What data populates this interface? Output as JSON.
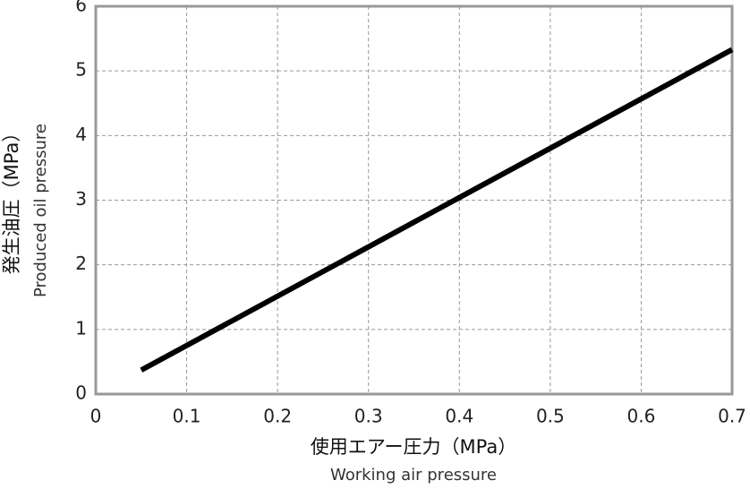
{
  "chart_data": {
    "type": "line",
    "ylabel": "発生油圧（MPa）",
    "ylabel_sub": "Produced oil pressure",
    "xlabel": "使用エアー圧力（MPa）",
    "xlabel_sub": "Working air pressure",
    "x": [
      0.05,
      0.7
    ],
    "values": [
      0.37,
      5.33
    ],
    "color": "#000000",
    "xlim": [
      0,
      0.7
    ],
    "xticks": [
      0,
      0.1,
      0.2,
      0.3,
      0.4,
      0.5,
      0.6,
      0.7
    ],
    "ylim": [
      0,
      6
    ],
    "yticks": [
      0,
      1,
      2,
      3,
      4,
      5,
      6
    ],
    "grid": true
  }
}
